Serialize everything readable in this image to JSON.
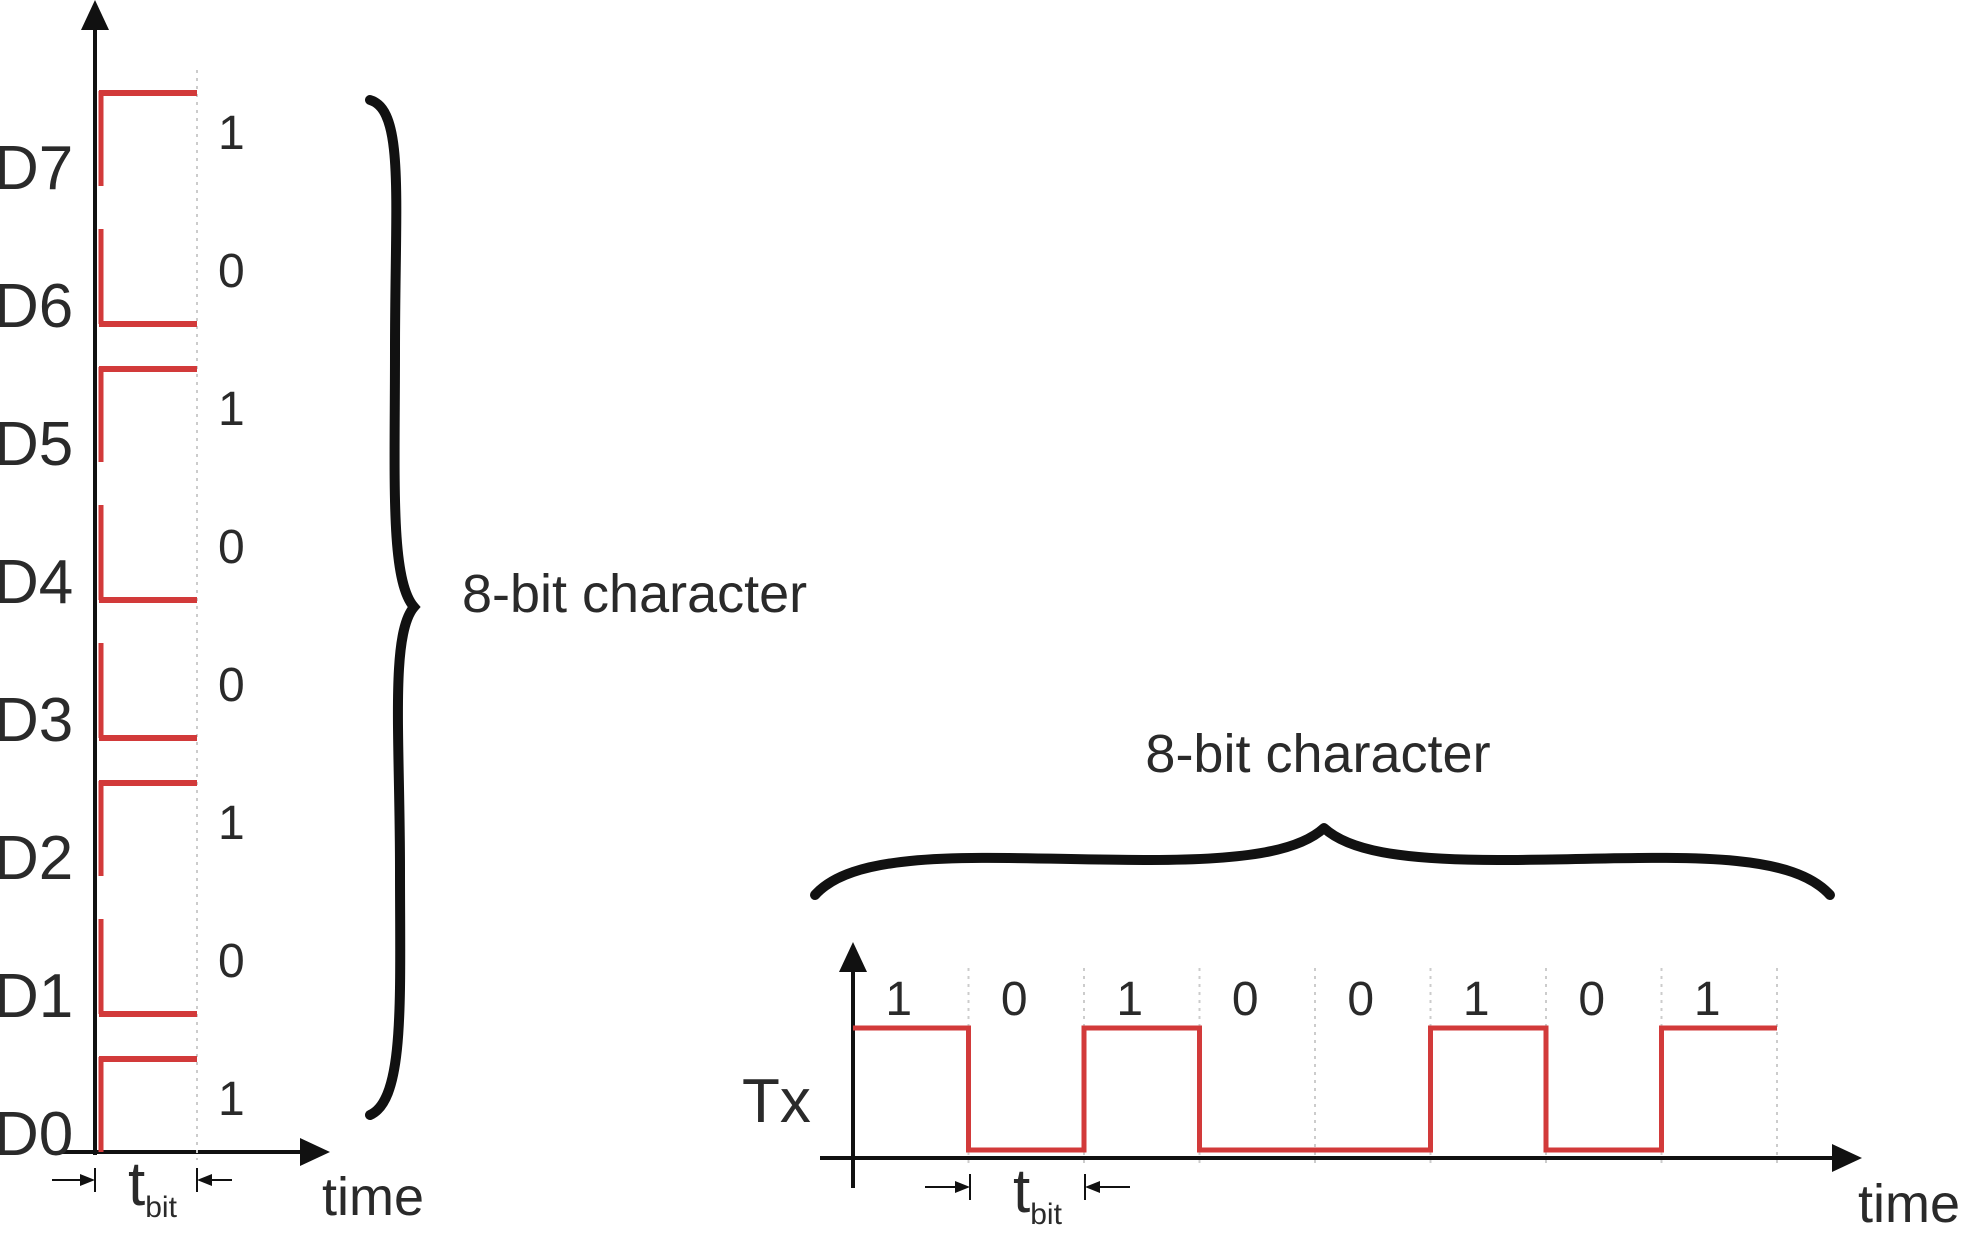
{
  "colors": {
    "signal": "#d23a3a",
    "ink": "#111111",
    "text": "#2a2a2a",
    "grid": "#cccccc"
  },
  "parallel": {
    "bits": [
      {
        "name": "D7",
        "value": "1"
      },
      {
        "name": "D6",
        "value": "0"
      },
      {
        "name": "D5",
        "value": "1"
      },
      {
        "name": "D4",
        "value": "0"
      },
      {
        "name": "D3",
        "value": "0"
      },
      {
        "name": "D2",
        "value": "1"
      },
      {
        "name": "D1",
        "value": "0"
      },
      {
        "name": "D0",
        "value": "1"
      }
    ],
    "brace_label": "8-bit character",
    "tbit_main": "t",
    "tbit_sub": "bit",
    "time_label": "time"
  },
  "serial": {
    "signal_label": "Tx",
    "bits": [
      "1",
      "0",
      "1",
      "0",
      "0",
      "1",
      "0",
      "1"
    ],
    "brace_label": "8-bit character",
    "tbit_main": "t",
    "tbit_sub": "bit",
    "time_label": "time"
  }
}
